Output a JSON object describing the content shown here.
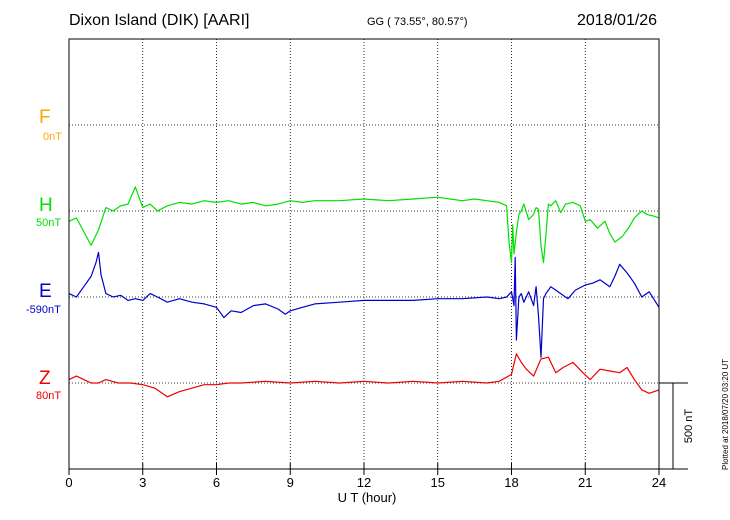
{
  "header": {
    "station": "Dixon Island (DIK)  [AARI]",
    "coords": "GG ( 73.55°,  80.57°)",
    "date": "2018/01/26"
  },
  "plotted_note": "Plotted at 2018/07/20 03:20 UT",
  "chart_data": {
    "type": "line",
    "xlabel": "U T (hour)",
    "xlim": [
      0,
      24
    ],
    "xticks": [
      0,
      3,
      6,
      9,
      12,
      15,
      18,
      21,
      24
    ],
    "scale_bar_label": "500 nT",
    "components": [
      {
        "name": "F",
        "offset_label": "0nT",
        "color": "#ffa500",
        "values": []
      },
      {
        "name": "H",
        "offset_label": "50nT",
        "color": "#00e000",
        "x": [
          0,
          0.3,
          0.6,
          0.9,
          1.2,
          1.5,
          1.8,
          2.1,
          2.4,
          2.7,
          2.8,
          3.0,
          3.3,
          3.6,
          4.0,
          4.5,
          5.0,
          5.5,
          6.0,
          6.5,
          7.0,
          7.5,
          8.0,
          8.5,
          9.0,
          9.5,
          10.0,
          11.0,
          12.0,
          13.0,
          14.0,
          15.0,
          15.5,
          16.0,
          16.5,
          17.0,
          17.5,
          17.8,
          17.9,
          18.0,
          18.05,
          18.1,
          18.2,
          18.3,
          18.4,
          18.5,
          18.7,
          18.9,
          19.0,
          19.1,
          19.2,
          19.3,
          19.4,
          19.5,
          19.6,
          19.8,
          20.0,
          20.2,
          20.5,
          20.8,
          21.0,
          21.2,
          21.5,
          21.8,
          22.0,
          22.2,
          22.5,
          22.8,
          23.0,
          23.3,
          23.5,
          23.8,
          24.0
        ],
        "y": [
          -60,
          -40,
          -120,
          -200,
          -110,
          20,
          0,
          30,
          40,
          140,
          100,
          20,
          40,
          0,
          30,
          50,
          40,
          60,
          50,
          60,
          40,
          50,
          30,
          40,
          60,
          50,
          60,
          60,
          70,
          60,
          70,
          80,
          70,
          60,
          70,
          60,
          50,
          30,
          -180,
          -300,
          -80,
          -250,
          -120,
          -20,
          0,
          40,
          -50,
          -20,
          20,
          10,
          -200,
          -300,
          -140,
          40,
          30,
          60,
          -10,
          40,
          50,
          30,
          -60,
          -50,
          -100,
          -60,
          -130,
          -180,
          -150,
          -90,
          -40,
          0,
          -20,
          -30,
          -40
        ]
      },
      {
        "name": "E",
        "offset_label": "-590nT",
        "color": "#0000cc",
        "x": [
          0,
          0.3,
          0.6,
          0.9,
          1.1,
          1.2,
          1.3,
          1.5,
          1.8,
          2.1,
          2.4,
          2.7,
          3.0,
          3.3,
          3.6,
          4.0,
          4.5,
          5.0,
          5.5,
          6.0,
          6.3,
          6.6,
          7.0,
          7.5,
          8.0,
          8.5,
          8.8,
          9.0,
          9.5,
          10.0,
          11.0,
          12.0,
          13.0,
          14.0,
          15.0,
          16.0,
          17.0,
          17.5,
          17.8,
          18.0,
          18.1,
          18.15,
          18.2,
          18.3,
          18.4,
          18.5,
          18.7,
          18.9,
          19.0,
          19.1,
          19.2,
          19.3,
          19.4,
          19.6,
          19.8,
          20.0,
          20.3,
          20.6,
          21.0,
          21.3,
          21.6,
          22.0,
          22.2,
          22.4,
          22.7,
          23.0,
          23.3,
          23.6,
          24.0
        ],
        "y": [
          20,
          0,
          60,
          120,
          200,
          260,
          130,
          20,
          0,
          10,
          -20,
          -10,
          -20,
          20,
          0,
          -30,
          -10,
          -30,
          -40,
          -60,
          -120,
          -80,
          -90,
          -50,
          -40,
          -70,
          -100,
          -80,
          -60,
          -40,
          -30,
          -20,
          -20,
          -20,
          -10,
          -10,
          0,
          -10,
          0,
          30,
          -50,
          230,
          -250,
          0,
          20,
          -30,
          30,
          -50,
          60,
          -110,
          -350,
          -10,
          20,
          60,
          40,
          20,
          -10,
          40,
          70,
          80,
          100,
          60,
          120,
          190,
          140,
          80,
          0,
          30,
          -60
        ]
      },
      {
        "name": "Z",
        "offset_label": "80nT",
        "color": "#ee0000",
        "x": [
          0,
          0.3,
          0.6,
          0.9,
          1.2,
          1.5,
          2.0,
          2.5,
          3.0,
          3.5,
          4.0,
          4.5,
          5.0,
          5.5,
          6.0,
          6.5,
          7.0,
          8.0,
          9.0,
          10.0,
          11.0,
          12.0,
          13.0,
          14.0,
          15.0,
          16.0,
          17.0,
          17.5,
          18.0,
          18.2,
          18.4,
          18.6,
          18.9,
          19.2,
          19.5,
          19.8,
          20.1,
          20.5,
          20.9,
          21.2,
          21.6,
          22.0,
          22.4,
          22.7,
          23.0,
          23.3,
          23.6,
          24.0
        ],
        "y": [
          20,
          40,
          20,
          0,
          0,
          20,
          0,
          0,
          -10,
          -30,
          -80,
          -50,
          -30,
          -10,
          -10,
          0,
          0,
          10,
          0,
          10,
          0,
          10,
          0,
          10,
          0,
          10,
          0,
          10,
          50,
          170,
          120,
          80,
          40,
          140,
          150,
          60,
          90,
          120,
          60,
          20,
          80,
          70,
          60,
          90,
          20,
          -40,
          -60,
          -40
        ]
      }
    ]
  }
}
